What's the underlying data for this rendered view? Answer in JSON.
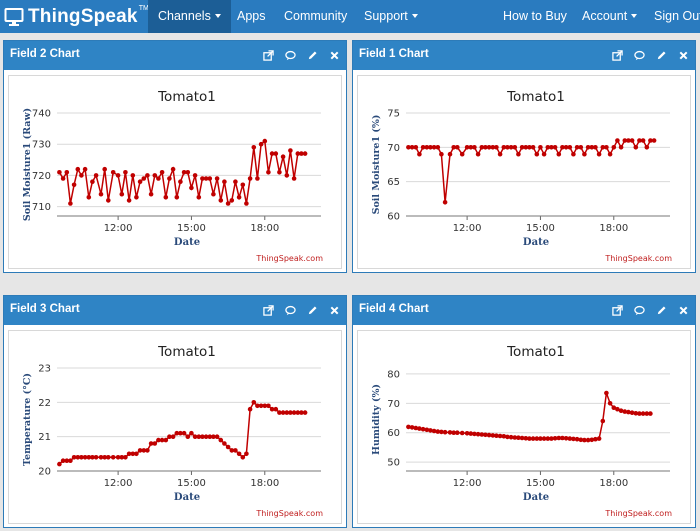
{
  "navbar": {
    "brand": "ThingSpeak",
    "trademark": "TM",
    "items": [
      {
        "label": "Channels",
        "dropdown": true
      },
      {
        "label": "Apps",
        "dropdown": false
      },
      {
        "label": "Community",
        "dropdown": false
      },
      {
        "label": "Support",
        "dropdown": true
      },
      {
        "label": "How to Buy",
        "dropdown": false
      },
      {
        "label": "Account",
        "dropdown": true
      },
      {
        "label": "Sign Out",
        "dropdown": false
      }
    ]
  },
  "panels": [
    {
      "title": "Field 2 Chart"
    },
    {
      "title": "Field 1 Chart"
    },
    {
      "title": "Field 3 Chart"
    },
    {
      "title": "Field 4 Chart"
    }
  ],
  "colors": {
    "navbar": "#2a7bbf",
    "panel_header": "#2f84c5",
    "series": "#c00000",
    "credit": "#c02020",
    "axis_label": "#2a4a7a"
  },
  "chart_data": [
    {
      "type": "line",
      "title": "Tomato1",
      "xlabel": "Date",
      "ylabel": "Soil Moisture1 (Raw)",
      "credit": "ThingSpeak.com",
      "ylim": [
        707,
        740
      ],
      "yticks": [
        710,
        720,
        730,
        740
      ],
      "xlim": [
        9.5,
        20.3
      ],
      "xticks": [
        {
          "v": 12,
          "label": "12:00"
        },
        {
          "v": 15,
          "label": "15:00"
        },
        {
          "v": 18,
          "label": "18:00"
        }
      ],
      "x": [
        9.6,
        9.75,
        9.9,
        10.05,
        10.2,
        10.35,
        10.5,
        10.65,
        10.8,
        10.95,
        11.1,
        11.3,
        11.45,
        11.6,
        11.8,
        12.0,
        12.15,
        12.3,
        12.45,
        12.6,
        12.75,
        12.9,
        13.05,
        13.2,
        13.35,
        13.5,
        13.65,
        13.8,
        13.95,
        14.1,
        14.25,
        14.4,
        14.55,
        14.7,
        14.85,
        15.0,
        15.15,
        15.3,
        15.45,
        15.6,
        15.75,
        15.9,
        16.05,
        16.2,
        16.35,
        16.5,
        16.65,
        16.8,
        16.95,
        17.1,
        17.25,
        17.4,
        17.55,
        17.7,
        17.85,
        18.0,
        18.15,
        18.3,
        18.45,
        18.6,
        18.75,
        18.9,
        19.05,
        19.2,
        19.35,
        19.5,
        19.65
      ],
      "values": [
        721,
        719,
        721,
        711,
        717,
        722,
        720,
        722,
        713,
        718,
        720,
        714,
        722,
        712,
        721,
        720,
        714,
        721,
        712,
        720,
        713,
        718,
        719,
        720,
        714,
        720,
        719,
        721,
        713,
        719,
        722,
        713,
        718,
        721,
        721,
        716,
        720,
        713,
        719,
        719,
        719,
        714,
        719,
        712,
        718,
        711,
        712,
        718,
        713,
        717,
        711,
        719,
        729,
        719,
        730,
        731,
        721,
        727,
        727,
        721,
        726,
        720,
        728,
        719,
        727,
        727,
        727
      ],
      "series_name": "Soil Moisture1"
    },
    {
      "type": "line",
      "title": "Tomato1",
      "xlabel": "Date",
      "ylabel": "Soil Moisture1 (%)",
      "credit": "ThingSpeak.com",
      "ylim": [
        60,
        75
      ],
      "yticks": [
        60,
        65,
        70,
        75
      ],
      "xlim": [
        9.5,
        20.3
      ],
      "xticks": [
        {
          "v": 12,
          "label": "12:00"
        },
        {
          "v": 15,
          "label": "15:00"
        },
        {
          "v": 18,
          "label": "18:00"
        }
      ],
      "x": [
        9.6,
        9.75,
        9.9,
        10.05,
        10.2,
        10.35,
        10.5,
        10.65,
        10.8,
        10.95,
        11.1,
        11.3,
        11.45,
        11.6,
        11.8,
        12.0,
        12.15,
        12.3,
        12.45,
        12.6,
        12.75,
        12.9,
        13.05,
        13.2,
        13.35,
        13.5,
        13.65,
        13.8,
        13.95,
        14.1,
        14.25,
        14.4,
        14.55,
        14.7,
        14.85,
        15.0,
        15.15,
        15.3,
        15.45,
        15.6,
        15.75,
        15.9,
        16.05,
        16.2,
        16.35,
        16.5,
        16.65,
        16.8,
        16.95,
        17.1,
        17.25,
        17.4,
        17.55,
        17.7,
        17.85,
        18.0,
        18.15,
        18.3,
        18.45,
        18.6,
        18.75,
        18.9,
        19.05,
        19.2,
        19.35,
        19.5,
        19.65
      ],
      "values": [
        70,
        70,
        70,
        69,
        70,
        70,
        70,
        70,
        70,
        69,
        62,
        69,
        70,
        70,
        69,
        70,
        70,
        70,
        69,
        70,
        70,
        70,
        70,
        70,
        69,
        70,
        70,
        70,
        70,
        69,
        70,
        70,
        70,
        70,
        69,
        70,
        69,
        70,
        70,
        70,
        69,
        70,
        70,
        70,
        69,
        70,
        70,
        69,
        70,
        70,
        70,
        69,
        70,
        70,
        69,
        70,
        71,
        70,
        71,
        71,
        71,
        70,
        71,
        71,
        70,
        71,
        71
      ],
      "series_name": "Soil Moisture1"
    },
    {
      "type": "line",
      "title": "Tomato1",
      "xlabel": "Date",
      "ylabel": "Temperature (°C)",
      "credit": "ThingSpeak.com",
      "ylim": [
        20,
        23
      ],
      "yticks": [
        20,
        21,
        22,
        23
      ],
      "xlim": [
        9.5,
        20.3
      ],
      "xticks": [
        {
          "v": 12,
          "label": "12:00"
        },
        {
          "v": 15,
          "label": "15:00"
        },
        {
          "v": 18,
          "label": "18:00"
        }
      ],
      "x": [
        9.6,
        9.75,
        9.9,
        10.05,
        10.2,
        10.35,
        10.5,
        10.65,
        10.8,
        10.95,
        11.1,
        11.3,
        11.45,
        11.6,
        11.8,
        12.0,
        12.15,
        12.3,
        12.45,
        12.6,
        12.75,
        12.9,
        13.05,
        13.2,
        13.35,
        13.5,
        13.65,
        13.8,
        13.95,
        14.1,
        14.25,
        14.4,
        14.55,
        14.7,
        14.85,
        15.0,
        15.15,
        15.3,
        15.45,
        15.6,
        15.75,
        15.9,
        16.05,
        16.2,
        16.35,
        16.5,
        16.65,
        16.8,
        16.95,
        17.1,
        17.25,
        17.4,
        17.55,
        17.7,
        17.85,
        18.0,
        18.15,
        18.3,
        18.45,
        18.6,
        18.75,
        18.9,
        19.05,
        19.2,
        19.35,
        19.5,
        19.65
      ],
      "values": [
        20.2,
        20.3,
        20.3,
        20.3,
        20.4,
        20.4,
        20.4,
        20.4,
        20.4,
        20.4,
        20.4,
        20.4,
        20.4,
        20.4,
        20.4,
        20.4,
        20.4,
        20.4,
        20.5,
        20.5,
        20.5,
        20.6,
        20.6,
        20.6,
        20.8,
        20.8,
        20.9,
        20.9,
        20.9,
        21.0,
        21.0,
        21.1,
        21.1,
        21.1,
        21.0,
        21.1,
        21.0,
        21.0,
        21.0,
        21.0,
        21.0,
        21.0,
        21.0,
        20.9,
        20.8,
        20.7,
        20.6,
        20.6,
        20.5,
        20.4,
        20.5,
        21.8,
        22.0,
        21.9,
        21.9,
        21.9,
        21.9,
        21.8,
        21.8,
        21.7,
        21.7,
        21.7,
        21.7,
        21.7,
        21.7,
        21.7,
        21.7
      ],
      "series_name": "Temperature"
    },
    {
      "type": "line",
      "title": "Tomato1",
      "xlabel": "Date",
      "ylabel": "Humidity (%)",
      "credit": "ThingSpeak.com",
      "ylim": [
        47,
        82
      ],
      "yticks": [
        50,
        60,
        70,
        80
      ],
      "xlim": [
        9.5,
        20.3
      ],
      "xticks": [
        {
          "v": 12,
          "label": "12:00"
        },
        {
          "v": 15,
          "label": "15:00"
        },
        {
          "v": 18,
          "label": "18:00"
        }
      ],
      "x": [
        9.6,
        9.75,
        9.9,
        10.05,
        10.2,
        10.35,
        10.5,
        10.65,
        10.8,
        10.95,
        11.1,
        11.3,
        11.45,
        11.6,
        11.8,
        12.0,
        12.15,
        12.3,
        12.45,
        12.6,
        12.75,
        12.9,
        13.05,
        13.2,
        13.35,
        13.5,
        13.65,
        13.8,
        13.95,
        14.1,
        14.25,
        14.4,
        14.55,
        14.7,
        14.85,
        15.0,
        15.15,
        15.3,
        15.45,
        15.6,
        15.75,
        15.9,
        16.05,
        16.2,
        16.35,
        16.5,
        16.65,
        16.8,
        16.95,
        17.1,
        17.25,
        17.4,
        17.55,
        17.7,
        17.85,
        18.0,
        18.15,
        18.3,
        18.45,
        18.6,
        18.75,
        18.9,
        19.05,
        19.2,
        19.35,
        19.5
      ],
      "values": [
        62,
        61.8,
        61.6,
        61.4,
        61.2,
        61.0,
        60.8,
        60.6,
        60.4,
        60.3,
        60.2,
        60.1,
        60.0,
        60.0,
        59.9,
        59.8,
        59.7,
        59.6,
        59.5,
        59.4,
        59.3,
        59.2,
        59.1,
        59.0,
        58.9,
        58.8,
        58.6,
        58.5,
        58.4,
        58.3,
        58.2,
        58.1,
        58.0,
        58.0,
        58.0,
        58.0,
        58.0,
        58.0,
        58.0,
        58.1,
        58.2,
        58.2,
        58.1,
        58.0,
        57.9,
        57.8,
        57.6,
        57.5,
        57.5,
        57.6,
        57.8,
        58.0,
        64.0,
        73.5,
        70.0,
        68.5,
        68.0,
        67.5,
        67.2,
        67.0,
        66.8,
        66.6,
        66.5,
        66.5,
        66.5,
        66.5
      ],
      "series_name": "Humidity"
    }
  ]
}
